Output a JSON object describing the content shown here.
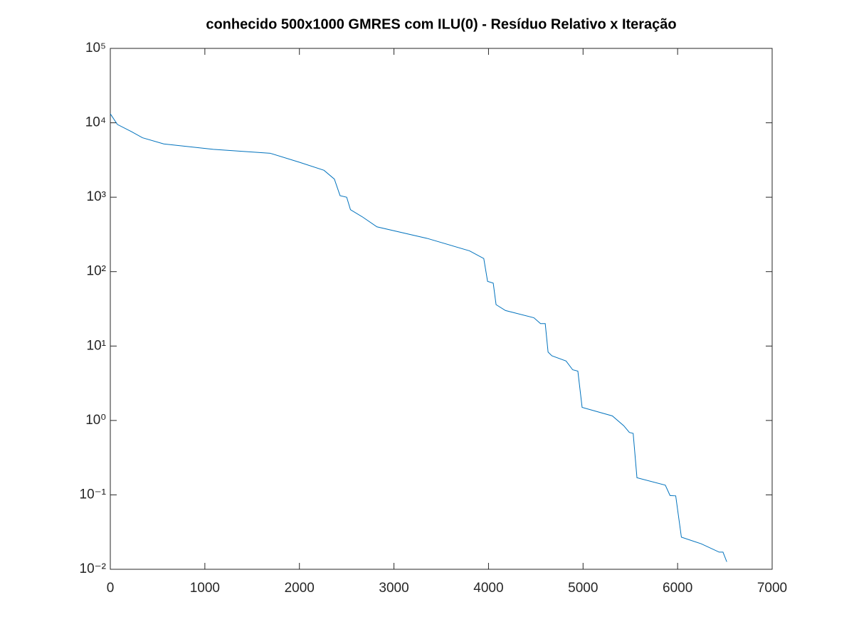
{
  "chart_data": {
    "type": "line",
    "title": "conhecido 500x1000 GMRES com ILU(0) - Resíduo Relativo x Iteração",
    "x": [
      0,
      75,
      225,
      340,
      565,
      1090,
      1690,
      2000,
      2260,
      2370,
      2430,
      2500,
      2540,
      2670,
      2820,
      3350,
      3800,
      3950,
      3990,
      4050,
      4080,
      4180,
      4480,
      4550,
      4600,
      4630,
      4670,
      4820,
      4890,
      4945,
      4990,
      5310,
      5430,
      5490,
      5530,
      5570,
      5870,
      5920,
      5980,
      6040,
      6250,
      6440,
      6480,
      6520
    ],
    "series": [
      {
        "color": "#0072bd",
        "values": [
          13200,
          9500,
          7600,
          6300,
          5200,
          4400,
          3900,
          2950,
          2300,
          1750,
          1050,
          1000,
          680,
          540,
          400,
          280,
          190,
          150,
          74,
          70,
          36,
          30,
          24,
          20,
          20,
          8.3,
          7.4,
          6.3,
          4.8,
          4.6,
          1.5,
          1.15,
          0.85,
          0.69,
          0.67,
          0.17,
          0.135,
          0.098,
          0.097,
          0.027,
          0.022,
          0.017,
          0.017,
          0.0126
        ]
      }
    ],
    "xlim": [
      0,
      7000
    ],
    "xticks": [
      0,
      1000,
      2000,
      3000,
      4000,
      5000,
      6000,
      7000
    ],
    "ylim": [
      0.01,
      100000
    ],
    "log_y": true,
    "yticks": [
      {
        "value": 0.01,
        "label": "10⁻²"
      },
      {
        "value": 0.1,
        "label": "10⁻¹"
      },
      {
        "value": 1,
        "label": "10⁰"
      },
      {
        "value": 10,
        "label": "10¹"
      },
      {
        "value": 100,
        "label": "10²"
      },
      {
        "value": 1000,
        "label": "10³"
      },
      {
        "value": 10000,
        "label": "10⁴"
      },
      {
        "value": 100000,
        "label": "10⁵"
      }
    ]
  }
}
